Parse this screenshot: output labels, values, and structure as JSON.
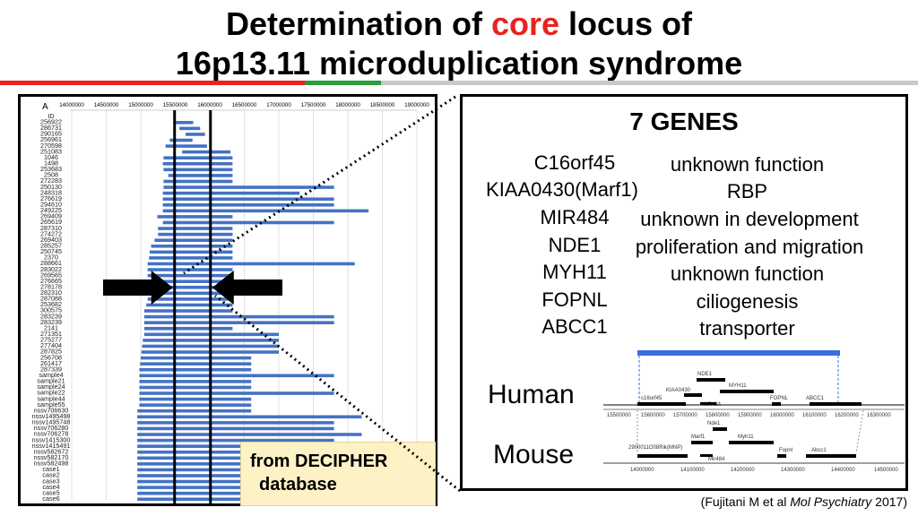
{
  "title": {
    "line1_before": "Determination of ",
    "line1_core": "core",
    "line1_after": " locus of",
    "line2": "16p13.11 microduplication syndrome"
  },
  "colors": {
    "accent_red": "#e8231f",
    "band_green": "#2a9d3c",
    "bar_blue": "#4472c4",
    "gene_bar_blue": "#3b6fe0"
  },
  "left_panel": {
    "panel_letter": "A",
    "axis_ticks": [
      "14000000",
      "14500000",
      "15000000",
      "15500000",
      "16000000",
      "16500000",
      "17000000",
      "17500000",
      "18000000",
      "18500000",
      "19000000"
    ],
    "id_header": "ID",
    "rows": [
      {
        "id": "256922",
        "start": 15480000,
        "end": 15760000
      },
      {
        "id": "286731",
        "start": 15560000,
        "end": 15860000
      },
      {
        "id": "290165",
        "start": 15650000,
        "end": 15930000
      },
      {
        "id": "256961",
        "start": 15420000,
        "end": 15750000
      },
      {
        "id": "270598",
        "start": 15360000,
        "end": 15960000
      },
      {
        "id": "251083",
        "start": 15600000,
        "end": 16300000
      },
      {
        "id": "1046",
        "start": 15330000,
        "end": 16330000
      },
      {
        "id": "1498",
        "start": 15320000,
        "end": 16330000
      },
      {
        "id": "253683",
        "start": 15330000,
        "end": 16330000
      },
      {
        "id": "2508",
        "start": 15400000,
        "end": 16330000
      },
      {
        "id": "272283",
        "start": 15330000,
        "end": 16330000
      },
      {
        "id": "250130",
        "start": 15330000,
        "end": 17800000
      },
      {
        "id": "248318",
        "start": 15320000,
        "end": 17300000
      },
      {
        "id": "276619",
        "start": 15320000,
        "end": 17800000
      },
      {
        "id": "294610",
        "start": 15320000,
        "end": 17800000
      },
      {
        "id": "249225",
        "start": 15320000,
        "end": 18300000
      },
      {
        "id": "269409",
        "start": 15240000,
        "end": 16330000
      },
      {
        "id": "265619",
        "start": 15320000,
        "end": 17800000
      },
      {
        "id": "287310",
        "start": 15250000,
        "end": 16330000
      },
      {
        "id": "274272",
        "start": 15250000,
        "end": 16330000
      },
      {
        "id": "269403",
        "start": 15200000,
        "end": 16330000
      },
      {
        "id": "285257",
        "start": 15150000,
        "end": 16330000
      },
      {
        "id": "250745",
        "start": 15130000,
        "end": 16330000
      },
      {
        "id": "2370",
        "start": 15120000,
        "end": 16330000
      },
      {
        "id": "288661",
        "start": 15100000,
        "end": 18100000
      },
      {
        "id": "283022",
        "start": 15100000,
        "end": 16330000
      },
      {
        "id": "269565",
        "start": 15100000,
        "end": 16330000
      },
      {
        "id": "276665",
        "start": 15100000,
        "end": 16330000
      },
      {
        "id": "278178",
        "start": 15100000,
        "end": 16330000
      },
      {
        "id": "282310",
        "start": 15100000,
        "end": 16330000
      },
      {
        "id": "287088",
        "start": 15100000,
        "end": 16330000
      },
      {
        "id": "253682",
        "start": 15080000,
        "end": 16330000
      },
      {
        "id": "300575",
        "start": 15050000,
        "end": 16330000
      },
      {
        "id": "283239",
        "start": 15050000,
        "end": 17800000
      },
      {
        "id": "283239",
        "start": 15050000,
        "end": 17800000
      },
      {
        "id": "2141",
        "start": 15050000,
        "end": 16330000
      },
      {
        "id": "271351",
        "start": 15050000,
        "end": 17000000
      },
      {
        "id": "275277",
        "start": 15030000,
        "end": 17000000
      },
      {
        "id": "277404",
        "start": 15020000,
        "end": 17000000
      },
      {
        "id": "287825",
        "start": 15010000,
        "end": 17000000
      },
      {
        "id": "256708",
        "start": 15000000,
        "end": 16600000
      },
      {
        "id": "261417",
        "start": 14990000,
        "end": 16600000
      },
      {
        "id": "287339",
        "start": 14980000,
        "end": 16600000
      },
      {
        "id": "sample4",
        "start": 14980000,
        "end": 17800000
      },
      {
        "id": "sample21",
        "start": 14980000,
        "end": 16600000
      },
      {
        "id": "sample24",
        "start": 14980000,
        "end": 16600000
      },
      {
        "id": "sample22",
        "start": 14980000,
        "end": 17800000
      },
      {
        "id": "sample44",
        "start": 14980000,
        "end": 16600000
      },
      {
        "id": "sample55",
        "start": 14980000,
        "end": 16600000
      },
      {
        "id": "nssv706630",
        "start": 14950000,
        "end": 16600000
      },
      {
        "id": "nssv1495498",
        "start": 14950000,
        "end": 18200000
      },
      {
        "id": "nssv1495748",
        "start": 14950000,
        "end": 17800000
      },
      {
        "id": "nssv706280",
        "start": 14950000,
        "end": 17800000
      },
      {
        "id": "nssv706278",
        "start": 14950000,
        "end": 18200000
      },
      {
        "id": "nssv1415300",
        "start": 14950000,
        "end": 17800000
      },
      {
        "id": "nssv1415491",
        "start": 14950000,
        "end": 17800000
      },
      {
        "id": "nssv582672",
        "start": 14950000,
        "end": 17800000
      },
      {
        "id": "nssv582170",
        "start": 14950000,
        "end": 17800000
      },
      {
        "id": "nssv582498",
        "start": 14950000,
        "end": 17800000
      },
      {
        "id": "case1",
        "start": 14950000,
        "end": 16600000
      },
      {
        "id": "case2",
        "start": 14950000,
        "end": 16600000
      },
      {
        "id": "case3",
        "start": 14950000,
        "end": 16600000
      },
      {
        "id": "case4",
        "start": 14950000,
        "end": 16600000
      },
      {
        "id": "case5",
        "start": 14950000,
        "end": 16600000
      },
      {
        "id": "case6",
        "start": 14950000,
        "end": 16600000
      }
    ],
    "core_region": {
      "start": 15490000,
      "end": 16010000
    }
  },
  "decipher_note": {
    "line1": "from DECIPHER",
    "line2": "database"
  },
  "right_panel": {
    "title": "7 GENES",
    "genes": [
      {
        "name": "C16orf45",
        "function": "unknown function"
      },
      {
        "name": "KIAA0430(Marf1)",
        "function": "RBP"
      },
      {
        "name": "MIR484",
        "function": "unknown in development"
      },
      {
        "name": "NDE1",
        "function": "proliferation and migration"
      },
      {
        "name": "MYH11",
        "function": "unknown function"
      },
      {
        "name": "FOPNL",
        "function": "ciliogenesis"
      },
      {
        "name": "ABCC1",
        "function": "transporter"
      }
    ],
    "human_label": "Human",
    "mouse_label": "Mouse",
    "human_track": {
      "ticks": [
        "15500000",
        "15600000",
        "15700000",
        "15800000",
        "15900000",
        "16000000",
        "16100000",
        "16200000",
        "16300000"
      ],
      "genes": [
        "NDE1",
        "MYH11",
        "KIAA0430",
        "c16orf45",
        "MIR484",
        "FOPNL",
        "ABCC1"
      ]
    },
    "mouse_track": {
      "ticks": [
        "14000000",
        "14100000",
        "14200000",
        "14300000",
        "14400000",
        "14500000"
      ],
      "genes": [
        "Nde1",
        "Marf1",
        "Myh11",
        "2900011O08Rik(MNP)",
        "Mir484",
        "Fopnl",
        "Abcc1"
      ]
    }
  },
  "citation": {
    "before": "(Fujitani M et al ",
    "journal": "Mol Psychiatry",
    "after": " 2017)"
  }
}
